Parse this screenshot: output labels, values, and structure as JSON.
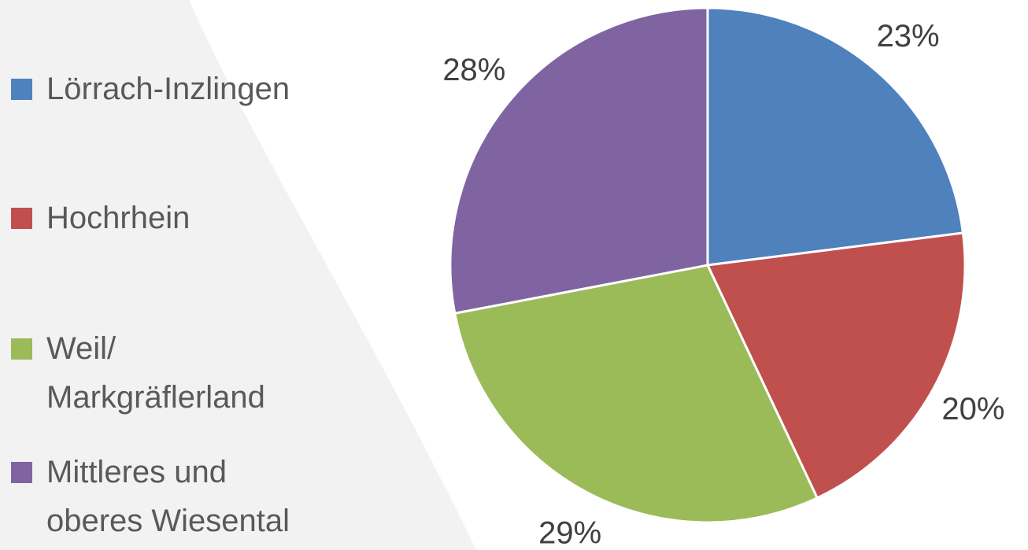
{
  "chart_data": {
    "type": "pie",
    "categories": [
      "Lörrach-Inzlingen",
      "Hochrhein",
      "Weil/ Markgräflerland",
      "Mittleres und oberes Wiesental"
    ],
    "values": [
      23,
      20,
      29,
      28
    ],
    "value_labels": [
      "23%",
      "20%",
      "29%",
      "28%"
    ],
    "colors": [
      "#4f81bd",
      "#c0504d",
      "#9bbb59",
      "#8064a2"
    ]
  }
}
